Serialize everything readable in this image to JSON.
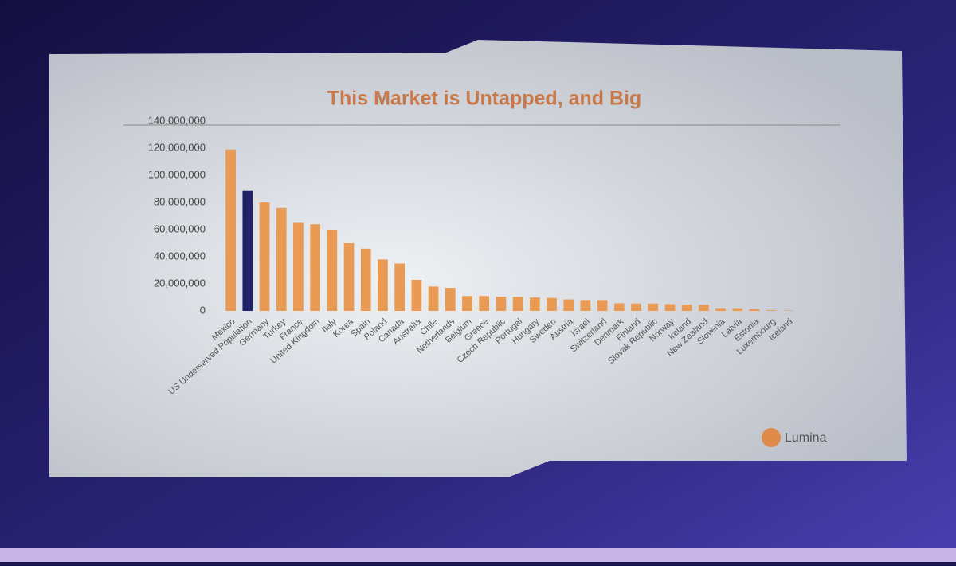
{
  "chart_data": {
    "type": "bar",
    "title": "This Market is Untapped, and Big",
    "categories": [
      "Mexico",
      "US Underserved Population",
      "Germany",
      "Turkey",
      "France",
      "United Kingdom",
      "Italy",
      "Korea",
      "Spain",
      "Poland",
      "Canada",
      "Australia",
      "Chile",
      "Netherlands",
      "Belgium",
      "Greece",
      "Czech Republic",
      "Portugal",
      "Hungary",
      "Sweden",
      "Austria",
      "Israel",
      "Switzerland",
      "Denmark",
      "Finland",
      "Slovak Republic",
      "Norway",
      "Ireland",
      "New Zealand",
      "Slovenia",
      "Latvia",
      "Estonia",
      "Luxembourg",
      "Iceland"
    ],
    "values": [
      119000000,
      89000000,
      80000000,
      76000000,
      65000000,
      64000000,
      60000000,
      50000000,
      46000000,
      38000000,
      35000000,
      23000000,
      18000000,
      17000000,
      11000000,
      11000000,
      10500000,
      10400000,
      9900000,
      9600000,
      8500000,
      8000000,
      8000000,
      5600000,
      5400000,
      5400000,
      5000000,
      4600000,
      4500000,
      2000000,
      2000000,
      1300000,
      500000,
      300000
    ],
    "colors": [
      "#e99a55",
      "#1f2466",
      "#e99a55",
      "#e99a55",
      "#e99a55",
      "#e99a55",
      "#e99a55",
      "#e99a55",
      "#e99a55",
      "#e99a55",
      "#e99a55",
      "#e99a55",
      "#e99a55",
      "#e99a55",
      "#e99a55",
      "#e99a55",
      "#e99a55",
      "#e99a55",
      "#e99a55",
      "#e99a55",
      "#e99a55",
      "#e99a55",
      "#e99a55",
      "#e99a55",
      "#e99a55",
      "#e99a55",
      "#e99a55",
      "#e99a55",
      "#e99a55",
      "#e99a55",
      "#e99a55",
      "#e99a55",
      "#e99a55",
      "#e99a55"
    ],
    "ylim": [
      0,
      140000000
    ],
    "yticks": [
      0,
      {
        "value": 20000000,
        "label": "20,000,000"
      },
      {
        "value": 40000000,
        "label": "40,000,000"
      },
      {
        "value": 60000000,
        "label": "60,000,000"
      },
      {
        "value": 80000000,
        "label": "80,000,000"
      },
      {
        "value": 100000000,
        "label": "100,000,000"
      },
      {
        "value": 120000000,
        "label": "120,000,000"
      },
      {
        "value": 140000000,
        "label": "140,000,000"
      }
    ],
    "grid": false
  },
  "logo": "Lumina"
}
